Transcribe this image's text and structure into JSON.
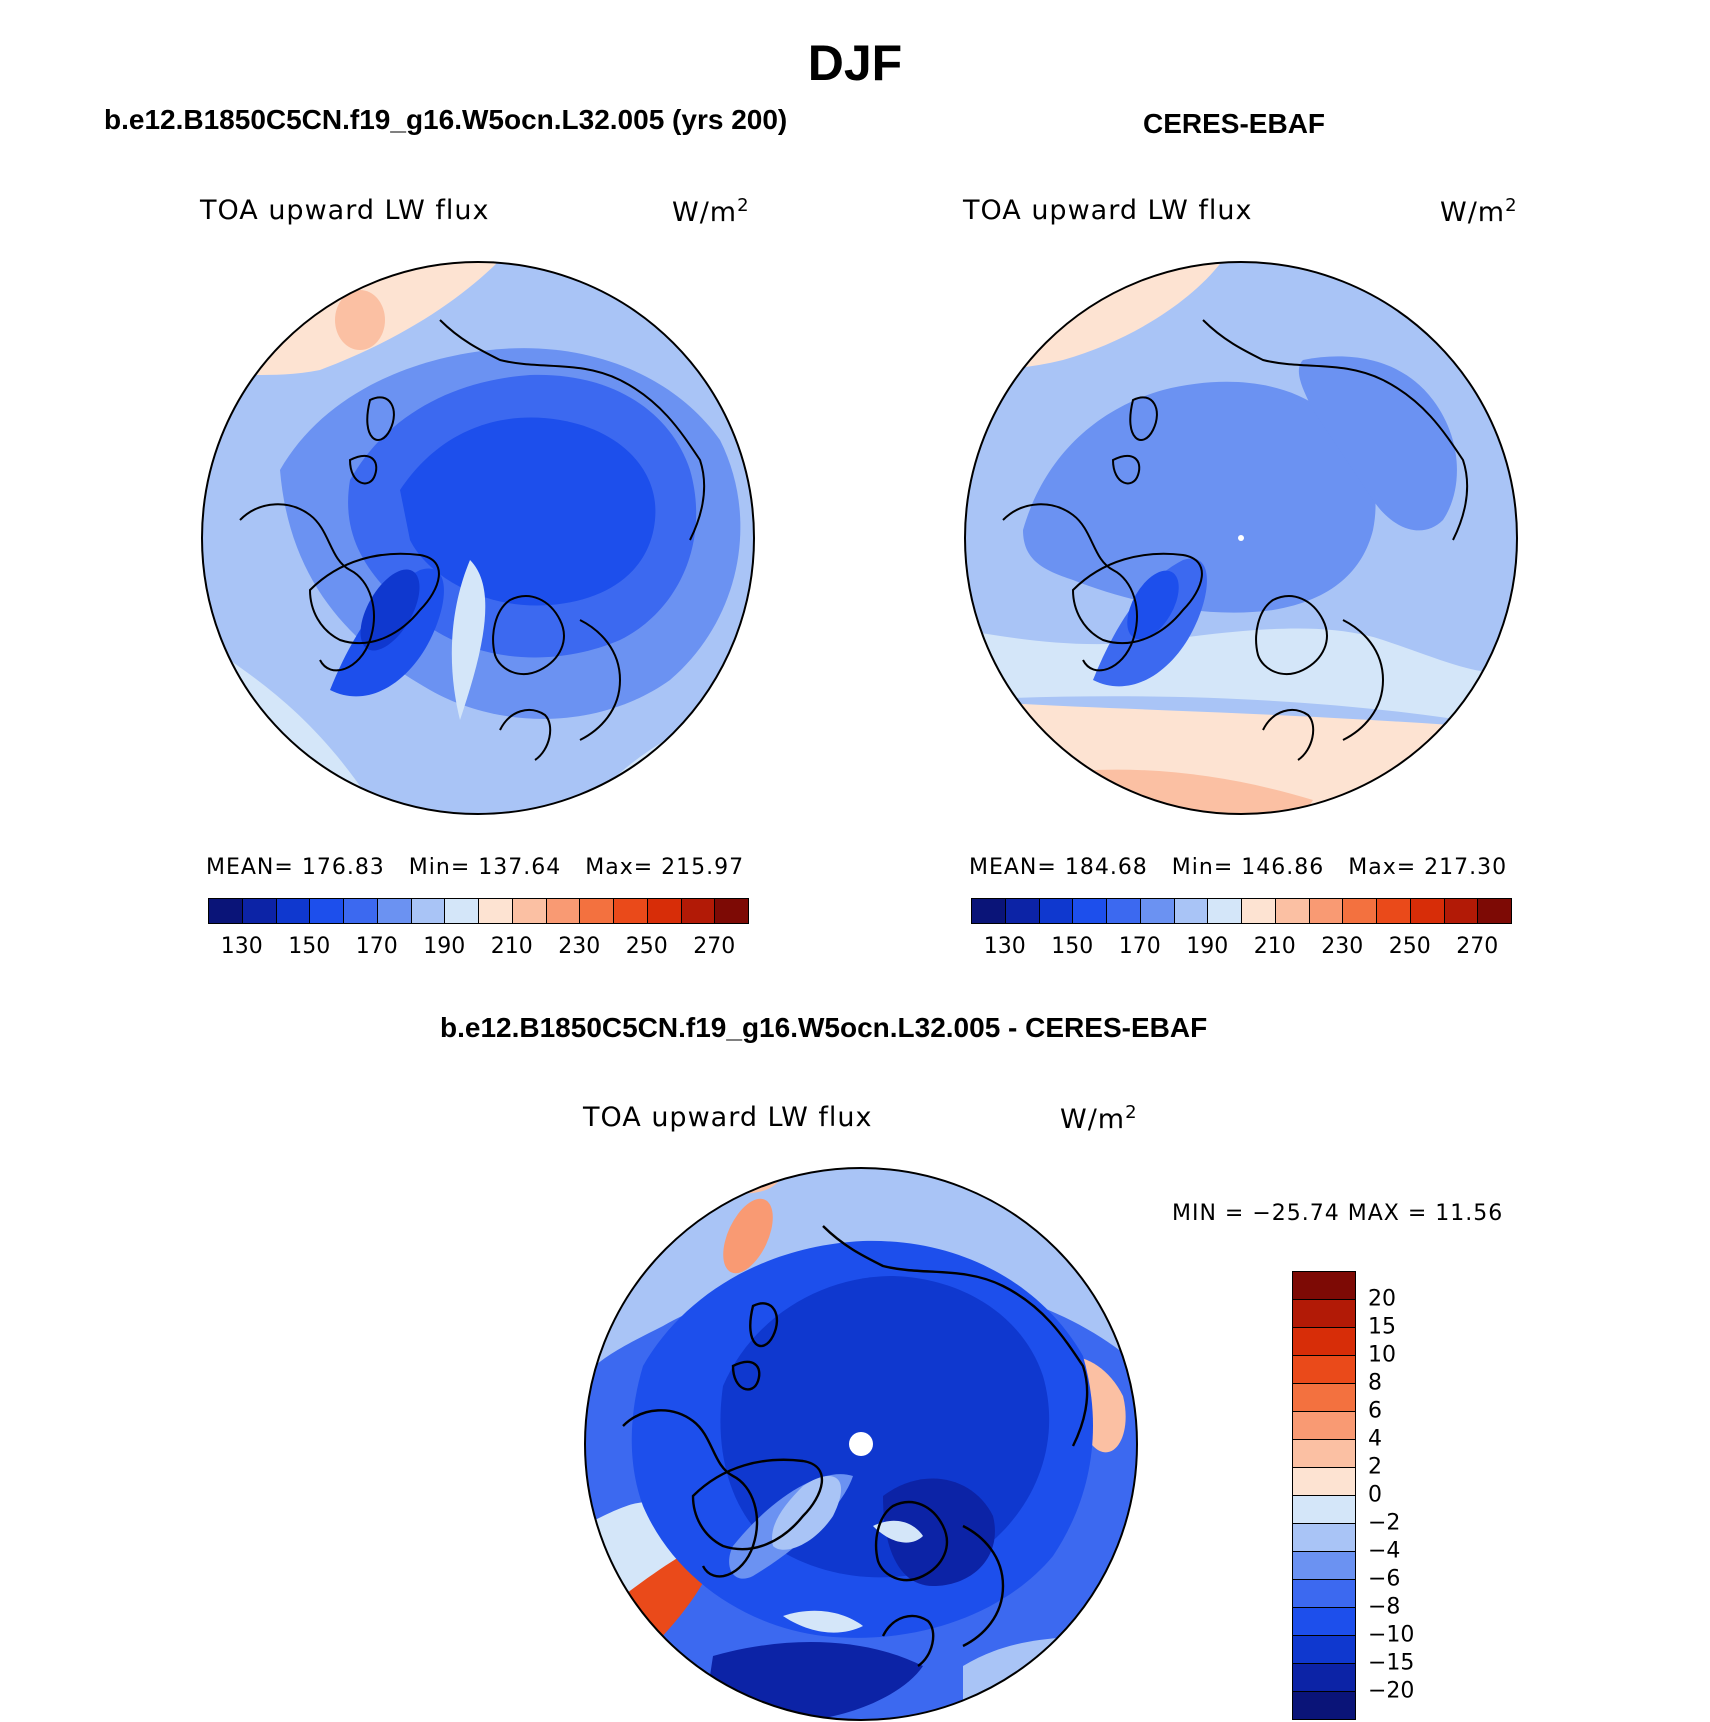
{
  "figure": {
    "title": "DJF",
    "colors": {
      "abs_palette": [
        "#0a1478",
        "#0c23a6",
        "#0f38cf",
        "#1d4fec",
        "#3c69f0",
        "#6b92f2",
        "#a9c4f6",
        "#d4e6f9",
        "#fde3d2",
        "#fbc0a3",
        "#f99a73",
        "#f3713f",
        "#ea4a1a",
        "#d72d08",
        "#b21a06",
        "#7d0a05"
      ],
      "diff_palette": [
        "#0a1478",
        "#0c23a6",
        "#0f38cf",
        "#1d4fec",
        "#3c69f0",
        "#6b92f2",
        "#a9c4f6",
        "#d4e6f9",
        "#fde3d2",
        "#fbc0a3",
        "#f99a73",
        "#f3713f",
        "#ea4a1a",
        "#d72d08",
        "#b21a06",
        "#7d0a05"
      ]
    }
  },
  "panels": {
    "model": {
      "title": "b.e12.B1850C5CN.f19_g16.W5ocn.L32.005 (yrs 200)",
      "var_label": "TOA upward LW flux",
      "unit": "W/m",
      "unit_exp": "2",
      "stats": {
        "mean_label": "MEAN=",
        "mean": "176.83",
        "min_label": "Min=",
        "min": "137.64",
        "max_label": "Max=",
        "max": "215.97"
      }
    },
    "obs": {
      "title": "CERES-EBAF",
      "var_label": "TOA upward LW flux",
      "unit": "W/m",
      "unit_exp": "2",
      "stats": {
        "mean_label": "MEAN=",
        "mean": "184.68",
        "min_label": "Min=",
        "min": "146.86",
        "max_label": "Max=",
        "max": "217.30"
      }
    },
    "diff": {
      "title": "b.e12.B1850C5CN.f19_g16.W5ocn.L32.005 - CERES-EBAF",
      "var_label": "TOA upward LW flux",
      "unit": "W/m",
      "unit_exp": "2",
      "minmax": "MIN = −25.74 MAX =   11.56"
    }
  },
  "chart_data": [
    {
      "type": "heatmap",
      "projection": "north-polar-stereographic",
      "title": "b.e12.B1850C5CN.f19_g16.W5ocn.L32.005 (yrs 200)",
      "variable": "TOA upward LW flux",
      "units": "W/m2",
      "mean": 176.83,
      "min": 137.64,
      "max": 215.97,
      "colorbar_levels": [
        130,
        140,
        150,
        160,
        170,
        180,
        190,
        200,
        210,
        220,
        230,
        240,
        250,
        260,
        270
      ],
      "colorbar_ticks": [
        "130",
        "150",
        "170",
        "190",
        "210",
        "230",
        "250",
        "270"
      ]
    },
    {
      "type": "heatmap",
      "projection": "north-polar-stereographic",
      "title": "CERES-EBAF",
      "variable": "TOA upward LW flux",
      "units": "W/m2",
      "mean": 184.68,
      "min": 146.86,
      "max": 217.3,
      "colorbar_levels": [
        130,
        140,
        150,
        160,
        170,
        180,
        190,
        200,
        210,
        220,
        230,
        240,
        250,
        260,
        270
      ],
      "colorbar_ticks": [
        "130",
        "150",
        "170",
        "190",
        "210",
        "230",
        "250",
        "270"
      ]
    },
    {
      "type": "heatmap",
      "projection": "north-polar-stereographic",
      "title": "b.e12.B1850C5CN.f19_g16.W5ocn.L32.005 - CERES-EBAF",
      "variable": "TOA upward LW flux",
      "units": "W/m2",
      "min": -25.74,
      "max": 11.56,
      "colorbar_levels": [
        -20,
        -15,
        -10,
        -8,
        -6,
        -4,
        -2,
        0,
        2,
        4,
        6,
        8,
        10,
        15,
        20
      ],
      "colorbar_ticks": [
        "20",
        "15",
        "10",
        "8",
        "6",
        "4",
        "2",
        "0",
        "−2",
        "−4",
        "−6",
        "−8",
        "−10",
        "−15",
        "−20"
      ]
    }
  ]
}
